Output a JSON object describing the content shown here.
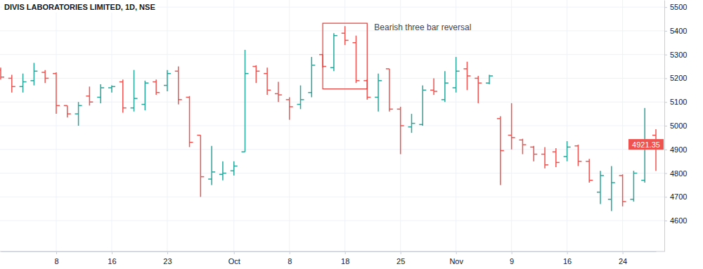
{
  "chart_data": {
    "type": "ohlc",
    "title": "DIVIS LABORATORIES LIMITED, 1D, NSE",
    "categories": [
      null,
      null,
      null,
      null,
      null,
      "8",
      null,
      null,
      null,
      null,
      "16",
      null,
      null,
      null,
      null,
      "23",
      null,
      null,
      null,
      null,
      null,
      "Oct",
      null,
      null,
      null,
      null,
      "8",
      null,
      null,
      null,
      null,
      "18",
      null,
      null,
      null,
      null,
      "25",
      null,
      null,
      null,
      null,
      "Nov",
      null,
      null,
      null,
      null,
      "9",
      null,
      null,
      null,
      null,
      "16",
      null,
      null,
      null,
      null,
      "24",
      null,
      null,
      null
    ],
    "open": [
      5235,
      5200,
      5165,
      5190,
      5225,
      5220,
      5085,
      5050,
      5125,
      5120,
      5160,
      5185,
      5075,
      5090,
      5185,
      5170,
      5230,
      5120,
      4960,
      4775,
      4795,
      4810,
      4890,
      5250,
      5220,
      5135,
      5110,
      5090,
      5140,
      5300,
      5245,
      5390,
      5350,
      5190,
      5120,
      5240,
      5070,
      4995,
      5005,
      5150,
      5110,
      5160,
      5240,
      5200,
      5180,
      5030,
      4960,
      4940,
      4910,
      4880,
      4890,
      4870,
      4915,
      4850,
      4720,
      4690,
      4790,
      4690,
      4770,
      4960
    ],
    "high": [
      5245,
      5215,
      5220,
      5265,
      5235,
      5225,
      5085,
      5100,
      5165,
      5175,
      5170,
      5195,
      5235,
      5190,
      5195,
      5235,
      5250,
      5125,
      4960,
      4915,
      4850,
      4850,
      5320,
      5255,
      5245,
      5185,
      5120,
      5170,
      5290,
      5300,
      5390,
      5420,
      5380,
      5195,
      5220,
      5240,
      5080,
      5050,
      5170,
      5200,
      5230,
      5290,
      5270,
      5210,
      5215,
      5040,
      5095,
      4945,
      4915,
      4910,
      4905,
      4935,
      4920,
      4860,
      4810,
      4830,
      4795,
      4810,
      5075,
      4985
    ],
    "low": [
      5195,
      5140,
      5140,
      5170,
      5180,
      5050,
      5035,
      5000,
      5085,
      5095,
      5140,
      5055,
      5060,
      5065,
      5130,
      5145,
      5090,
      4910,
      4700,
      4750,
      4770,
      4790,
      4890,
      5180,
      5130,
      5100,
      5025,
      5070,
      5120,
      5245,
      5230,
      5340,
      5180,
      5110,
      5060,
      5060,
      4880,
      4970,
      5000,
      5130,
      5100,
      5140,
      5150,
      5095,
      5175,
      4750,
      4900,
      4880,
      4850,
      4820,
      4825,
      4850,
      4830,
      4760,
      4670,
      4640,
      4660,
      4680,
      4760,
      4810
    ],
    "close": [
      5205,
      5165,
      5185,
      5230,
      5200,
      5085,
      5050,
      5085,
      5100,
      5160,
      5165,
      5075,
      5115,
      5180,
      5140,
      5220,
      5110,
      4930,
      4785,
      4805,
      4800,
      4830,
      5220,
      5230,
      5150,
      5130,
      5080,
      5110,
      5255,
      5250,
      5380,
      5360,
      5190,
      5120,
      5190,
      5070,
      5000,
      5010,
      5150,
      5145,
      5180,
      5230,
      5210,
      5180,
      5210,
      4895,
      4950,
      4920,
      4880,
      4835,
      4845,
      4910,
      4850,
      4770,
      4790,
      4760,
      4680,
      4800,
      4940,
      4921.35
    ],
    "colors": [
      "#ef5350",
      "#ef5350",
      "#26a69a",
      "#26a69a",
      "#ef5350",
      "#ef5350",
      "#ef5350",
      "#26a69a",
      "#ef5350",
      "#26a69a",
      "#26a69a",
      "#ef5350",
      "#26a69a",
      "#26a69a",
      "#ef5350",
      "#26a69a",
      "#ef5350",
      "#ef5350",
      "#ef5350",
      "#26a69a",
      "#26a69a",
      "#26a69a",
      "#26a69a",
      "#ef5350",
      "#ef5350",
      "#ef5350",
      "#ef5350",
      "#26a69a",
      "#26a69a",
      "#ef5350",
      "#26a69a",
      "#ef5350",
      "#ef5350",
      "#ef5350",
      "#26a69a",
      "#ef5350",
      "#ef5350",
      "#26a69a",
      "#26a69a",
      "#ef5350",
      "#26a69a",
      "#26a69a",
      "#ef5350",
      "#ef5350",
      "#26a69a",
      "#ef5350",
      "#ef5350",
      "#ef5350",
      "#ef5350",
      "#ef5350",
      "#ef5350",
      "#26a69a",
      "#ef5350",
      "#ef5350",
      "#26a69a",
      "#26a69a",
      "#ef5350",
      "#26a69a",
      "#26a69a",
      "#ef5350"
    ],
    "ylim": [
      4470,
      5530
    ],
    "yticks": [
      4600,
      4700,
      4800,
      4900,
      5000,
      5100,
      5200,
      5300,
      5400,
      5500
    ],
    "grid": true,
    "last_price": 4921.35,
    "annotations": [
      {
        "text": "Bearish three bar reversal",
        "x": [
          30,
          32
        ],
        "y": [
          5155,
          5432
        ]
      }
    ]
  }
}
